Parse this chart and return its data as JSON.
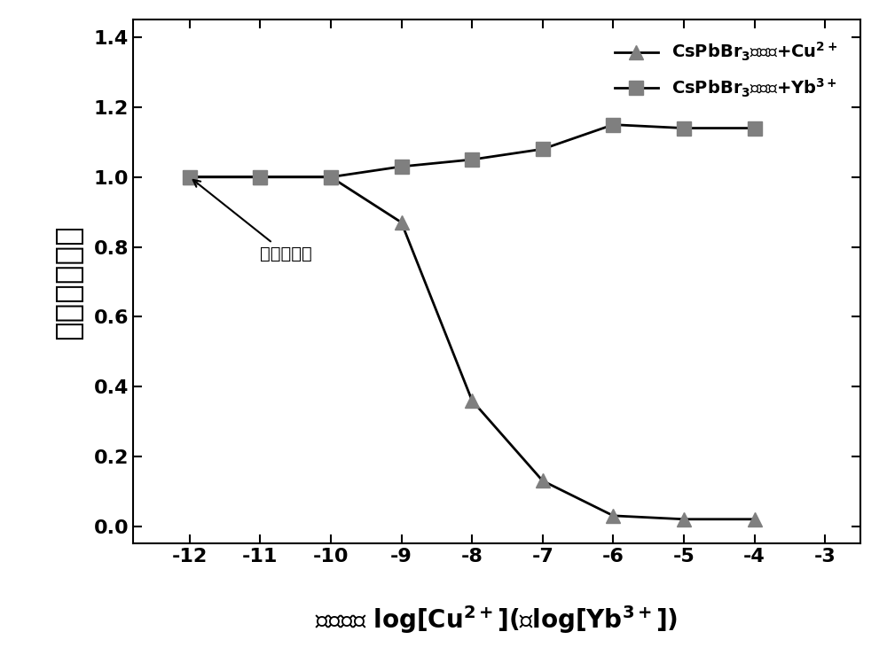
{
  "cu_x": [
    -12,
    -11,
    -10,
    -9,
    -8,
    -7,
    -6,
    -5,
    -4
  ],
  "cu_y": [
    1.0,
    1.0,
    1.0,
    0.87,
    0.36,
    0.13,
    0.03,
    0.02,
    0.02
  ],
  "yb_x": [
    -12,
    -11,
    -10,
    -9,
    -8,
    -7,
    -6,
    -5,
    -4
  ],
  "yb_y": [
    1.0,
    1.0,
    1.0,
    1.03,
    1.05,
    1.08,
    1.15,
    1.14,
    1.14
  ],
  "ylabel": "相对荺光强度",
  "xlim": [
    -12.8,
    -2.5
  ],
  "ylim": [
    -0.05,
    1.45
  ],
  "xticks": [
    -12,
    -11,
    -10,
    -9,
    -8,
    -7,
    -6,
    -5,
    -4,
    -3
  ],
  "yticks": [
    0.0,
    0.2,
    0.4,
    0.6,
    0.8,
    1.0,
    1.2,
    1.4
  ],
  "line_color": "#000000",
  "marker_color": "#7f7f7f",
  "annotation_text": "无金属离子",
  "background_color": "#ffffff",
  "tick_fontsize": 16,
  "label_fontsize": 20,
  "legend_fontsize": 14,
  "annot_fontsize": 14
}
